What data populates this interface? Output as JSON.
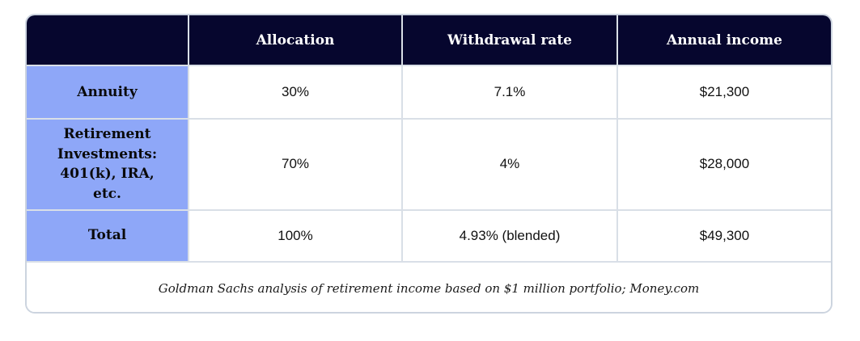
{
  "colors": {
    "header_background": "#06062e",
    "header_text": "#ffffff",
    "row_label_background": "#8ea7f8",
    "body_text": "#111111",
    "grid_line": "#d9dfe7",
    "outer_border": "#ccd4df",
    "page_background": "#ffffff"
  },
  "chart_data": {
    "type": "table",
    "columns": [
      "",
      "Allocation",
      "Withdrawal rate",
      "Annual income"
    ],
    "rows": [
      {
        "label": "Annuity",
        "values": [
          "30%",
          "7.1%",
          "$21,300"
        ]
      },
      {
        "label": "Retirement Investments: 401(k), IRA, etc.",
        "values": [
          "70%",
          "4%",
          "$28,000"
        ]
      },
      {
        "label": "Total",
        "values": [
          "100%",
          "4.93% (blended)",
          "$49,300"
        ]
      }
    ],
    "footer_note": "Goldman Sachs analysis of retirement income based on $1 million portfolio; Money.com"
  }
}
